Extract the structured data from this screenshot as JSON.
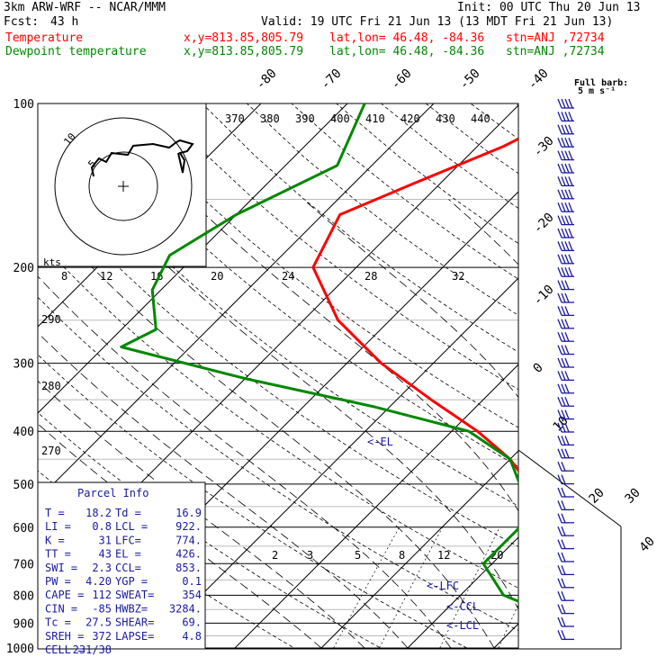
{
  "header": {
    "model": "3km ARW-WRF -- NCAR/MMM",
    "init": "Init: 00 UTC Thu 20 Jun 13",
    "fcst_label": "Fcst:",
    "fcst_value": "43 h",
    "valid": "Valid: 19 UTC Fri 21 Jun 13 (13 MDT Fri 21 Jun 13)",
    "temp_label": "Temperature",
    "dew_label": "Dewpoint temperature",
    "xy": "x,y=813.85,805.79",
    "latlon": "lat,lon= 46.48, -84.36",
    "stn": "stn=ANJ ,72734",
    "barb_key_1": "Full barb:",
    "barb_key_2": "5 m s⁻¹"
  },
  "colors": {
    "temperature": "#ff0000",
    "dewpoint": "#008800",
    "parcel_text": "#1a1aa0",
    "barbs": "#1a1aa0"
  },
  "hodograph": {
    "ring_labels": [
      "5",
      "10"
    ],
    "speed_unit": "kts"
  },
  "parcel_info": {
    "title": "Parcel Info",
    "rows": [
      [
        "T  =",
        "18.2",
        "Td =",
        "16.9"
      ],
      [
        "LI =",
        "0.8",
        "LCL =",
        "922."
      ],
      [
        "K  =",
        "31",
        "LFC=",
        "774."
      ],
      [
        "TT =",
        "43",
        "EL =",
        "426."
      ],
      [
        "SWI =",
        "2.3",
        "CCL=",
        "853."
      ],
      [
        "PW =",
        "4.20",
        "YGP =",
        "0.1"
      ],
      [
        "CAPE =",
        "112",
        "SWEAT=",
        "354"
      ],
      [
        "CIN =",
        "-85",
        "HWBZ=",
        "3284."
      ],
      [
        "Tc =",
        "27.5",
        "SHEAR=",
        "69."
      ],
      [
        "SREH =",
        "372",
        "LAPSE=",
        "4.8"
      ],
      [
        "CELL =",
        "231/38",
        "",
        ""
      ]
    ]
  },
  "chart_data": {
    "type": "line",
    "title": "",
    "xlabel": "",
    "ylabel": "",
    "y_scale": "log-pressure",
    "pressure_levels": [
      100,
      200,
      300,
      400,
      500,
      600,
      700,
      800,
      900,
      1000
    ],
    "isotherm_labels": [
      "-80",
      "-70",
      "-60",
      "-50",
      "-40",
      "-30",
      "-20",
      "-10",
      "0",
      "10",
      "20",
      "30",
      "40"
    ],
    "theta_labels": [
      "370",
      "380",
      "390",
      "400",
      "410",
      "420",
      "430",
      "440"
    ],
    "mixing_ratio_labels": [
      "2",
      "3",
      "5",
      "8",
      "12",
      "20"
    ],
    "upper_labels": [
      "8",
      "12",
      "16",
      "20",
      "24",
      "28",
      "32"
    ],
    "dry_labels": [
      "290",
      "280",
      "270"
    ],
    "level_markers": [
      "EL",
      "LFC",
      "CCL",
      "LCL"
    ],
    "series": [
      {
        "name": "Temperature",
        "points": [
          [
            100,
            -42
          ],
          [
            120,
            -47
          ],
          [
            140,
            -53
          ],
          [
            160,
            -58
          ],
          [
            200,
            -55
          ],
          [
            250,
            -46
          ],
          [
            300,
            -36
          ],
          [
            350,
            -26
          ],
          [
            400,
            -17
          ],
          [
            450,
            -10
          ],
          [
            500,
            -5
          ],
          [
            550,
            0
          ],
          [
            600,
            3
          ],
          [
            650,
            3
          ],
          [
            700,
            6
          ],
          [
            750,
            9
          ],
          [
            800,
            13
          ],
          [
            850,
            16
          ],
          [
            900,
            19
          ],
          [
            950,
            19
          ],
          [
            980,
            18
          ]
        ]
      },
      {
        "name": "Dewpoint temperature",
        "points": [
          [
            100,
            -68
          ],
          [
            130,
            -64
          ],
          [
            160,
            -70
          ],
          [
            190,
            -73
          ],
          [
            220,
            -71
          ],
          [
            260,
            -66
          ],
          [
            280,
            -68
          ],
          [
            320,
            -50
          ],
          [
            360,
            -32
          ],
          [
            400,
            -18
          ],
          [
            450,
            -10
          ],
          [
            500,
            -6
          ],
          [
            550,
            -1
          ],
          [
            600,
            -1
          ],
          [
            700,
            -1
          ],
          [
            800,
            5
          ],
          [
            900,
            16
          ],
          [
            920,
            17
          ],
          [
            950,
            15
          ],
          [
            980,
            14
          ]
        ]
      }
    ]
  }
}
